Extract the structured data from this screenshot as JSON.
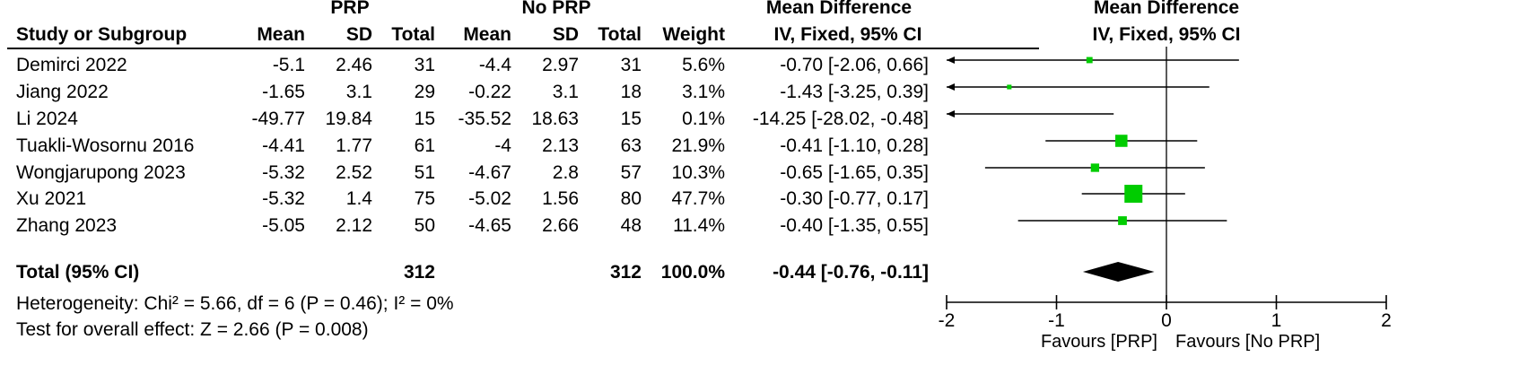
{
  "headers": {
    "group1": "PRP",
    "group2": "No PRP",
    "md_top": "Mean Difference",
    "plot_top": "Mean Difference",
    "study": "Study or Subgroup",
    "mean1": "Mean",
    "sd1": "SD",
    "total1": "Total",
    "mean2": "Mean",
    "sd2": "SD",
    "total2": "Total",
    "weight": "Weight",
    "md_sub": "IV, Fixed, 95% CI",
    "plot_sub": "IV, Fixed, 95% CI"
  },
  "studies": [
    {
      "name": "Demirci 2022",
      "mean1": "-5.1",
      "sd1": "2.46",
      "n1": "31",
      "mean2": "-4.4",
      "sd2": "2.97",
      "n2": "31",
      "weight": "5.6%",
      "ci_text": "-0.70 [-2.06, 0.66]"
    },
    {
      "name": "Jiang 2022",
      "mean1": "-1.65",
      "sd1": "3.1",
      "n1": "29",
      "mean2": "-0.22",
      "sd2": "3.1",
      "n2": "18",
      "weight": "3.1%",
      "ci_text": "-1.43 [-3.25, 0.39]"
    },
    {
      "name": "Li 2024",
      "mean1": "-49.77",
      "sd1": "19.84",
      "n1": "15",
      "mean2": "-35.52",
      "sd2": "18.63",
      "n2": "15",
      "weight": "0.1%",
      "ci_text": "-14.25 [-28.02, -0.48]"
    },
    {
      "name": "Tuakli-Wosornu 2016",
      "mean1": "-4.41",
      "sd1": "1.77",
      "n1": "61",
      "mean2": "-4",
      "sd2": "2.13",
      "n2": "63",
      "weight": "21.9%",
      "ci_text": "-0.41 [-1.10, 0.28]"
    },
    {
      "name": "Wongjarupong 2023",
      "mean1": "-5.32",
      "sd1": "2.52",
      "n1": "51",
      "mean2": "-4.67",
      "sd2": "2.8",
      "n2": "57",
      "weight": "10.3%",
      "ci_text": "-0.65 [-1.65, 0.35]"
    },
    {
      "name": "Xu 2021",
      "mean1": "-5.32",
      "sd1": "1.4",
      "n1": "75",
      "mean2": "-5.02",
      "sd2": "1.56",
      "n2": "80",
      "weight": "47.7%",
      "ci_text": "-0.30 [-0.77, 0.17]"
    },
    {
      "name": "Zhang 2023",
      "mean1": "-5.05",
      "sd1": "2.12",
      "n1": "50",
      "mean2": "-4.65",
      "sd2": "2.66",
      "n2": "48",
      "weight": "11.4%",
      "ci_text": "-0.40 [-1.35, 0.55]"
    }
  ],
  "total": {
    "label": "Total (95% CI)",
    "n1": "312",
    "n2": "312",
    "weight": "100.0%",
    "ci_text": "-0.44 [-0.76, -0.11]"
  },
  "heterogeneity": "Heterogeneity: Chi² = 5.66, df = 6 (P = 0.46); I² = 0%",
  "overall_effect": "Test for overall effect: Z = 2.66 (P = 0.008)",
  "axis": {
    "ticks": [
      "-2",
      "-1",
      "0",
      "1",
      "2"
    ],
    "favours_left": "Favours [PRP]",
    "favours_right": "Favours [No PRP]"
  },
  "chart_data": {
    "type": "scatter",
    "subtype": "forest-plot",
    "xlim": [
      -2,
      2
    ],
    "xticks": [
      -2,
      -1,
      0,
      1,
      2
    ],
    "colors": {
      "marker": "#00cc00",
      "diamond": "#000000",
      "line": "#000000"
    },
    "studies": [
      {
        "name": "Demirci 2022",
        "md": -0.7,
        "lo": -2.06,
        "hi": 0.66,
        "weight": 5.6
      },
      {
        "name": "Jiang 2022",
        "md": -1.43,
        "lo": -3.25,
        "hi": 0.39,
        "weight": 3.1
      },
      {
        "name": "Li 2024",
        "md": -14.25,
        "lo": -28.02,
        "hi": -0.48,
        "weight": 0.1
      },
      {
        "name": "Tuakli-Wosornu 2016",
        "md": -0.41,
        "lo": -1.1,
        "hi": 0.28,
        "weight": 21.9
      },
      {
        "name": "Wongjarupong 2023",
        "md": -0.65,
        "lo": -1.65,
        "hi": 0.35,
        "weight": 10.3
      },
      {
        "name": "Xu 2021",
        "md": -0.3,
        "lo": -0.77,
        "hi": 0.17,
        "weight": 47.7
      },
      {
        "name": "Zhang 2023",
        "md": -0.4,
        "lo": -1.35,
        "hi": 0.55,
        "weight": 11.4
      }
    ],
    "pooled": {
      "md": -0.44,
      "lo": -0.76,
      "hi": -0.11
    }
  }
}
